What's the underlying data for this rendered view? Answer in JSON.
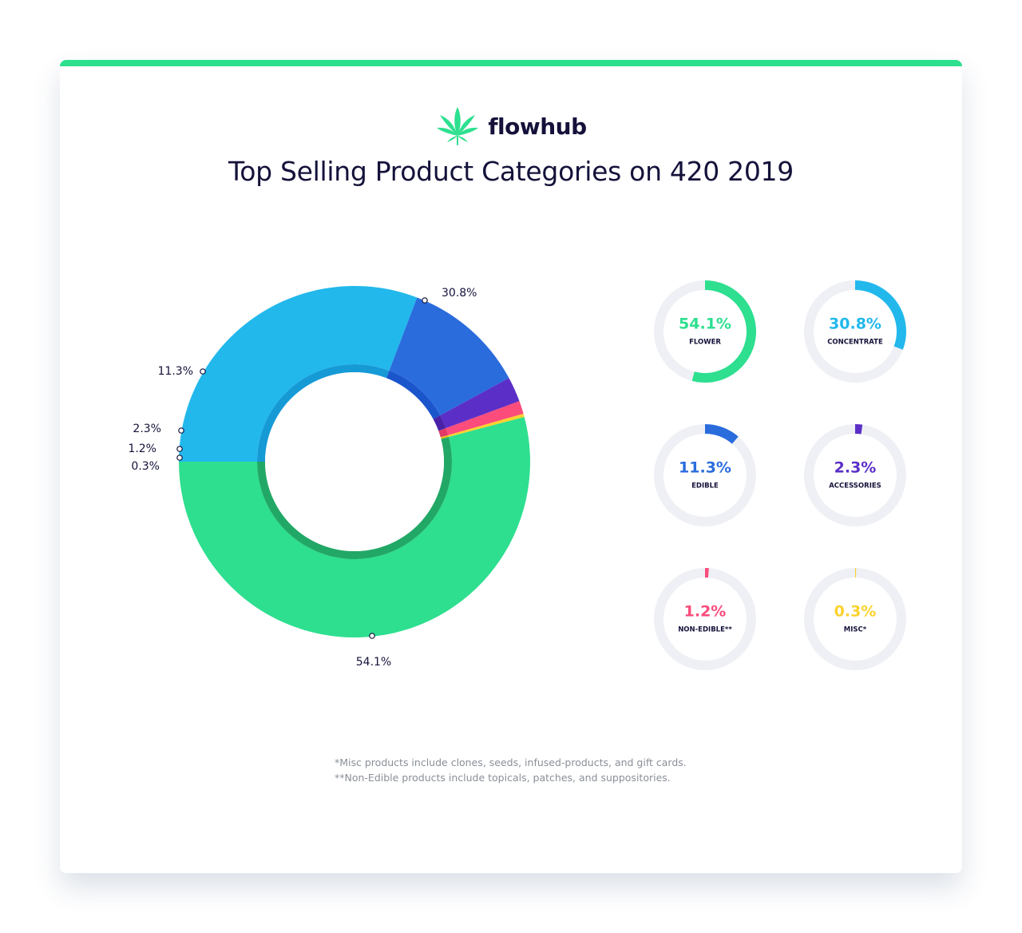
{
  "brand": {
    "name": "flowhub",
    "logo_icon": "cannabis-leaf-icon",
    "accent": "#2de08f"
  },
  "title": "Top Selling Product Categories on 420 2019",
  "chart_data": {
    "type": "pie",
    "variant": "donut",
    "title": "Top Selling Product Categories on 420 2019",
    "series": [
      {
        "name": "FLOWER",
        "value": 54.1,
        "label": "54.1%",
        "color": "#2ddf8f",
        "inner_color": "#22a866"
      },
      {
        "name": "CONCENTRATE",
        "value": 30.8,
        "label": "30.8%",
        "color": "#22b8ec",
        "inner_color": "#159ad6"
      },
      {
        "name": "EDIBLE",
        "value": 11.3,
        "label": "11.3%",
        "color": "#2a6cdc",
        "inner_color": "#1a55cc"
      },
      {
        "name": "ACCESSORIES",
        "value": 2.3,
        "label": "2.3%",
        "color": "#5b2fc7",
        "inner_color": "#4a22a8"
      },
      {
        "name": "NON-EDIBLE**",
        "value": 1.2,
        "label": "1.2%",
        "color": "#fc4c7c",
        "inner_color": "#e03a68"
      },
      {
        "name": "MISC*",
        "value": 0.3,
        "label": "0.3%",
        "color": "#fcd22d",
        "inner_color": "#e5bc1a"
      }
    ],
    "small_multiples_track_color": "#eef0f5"
  },
  "footnotes": [
    "*Misc products include clones, seeds, infused-products, and gift cards.",
    "**Non-Edible products include topicals, patches, and suppositories."
  ]
}
